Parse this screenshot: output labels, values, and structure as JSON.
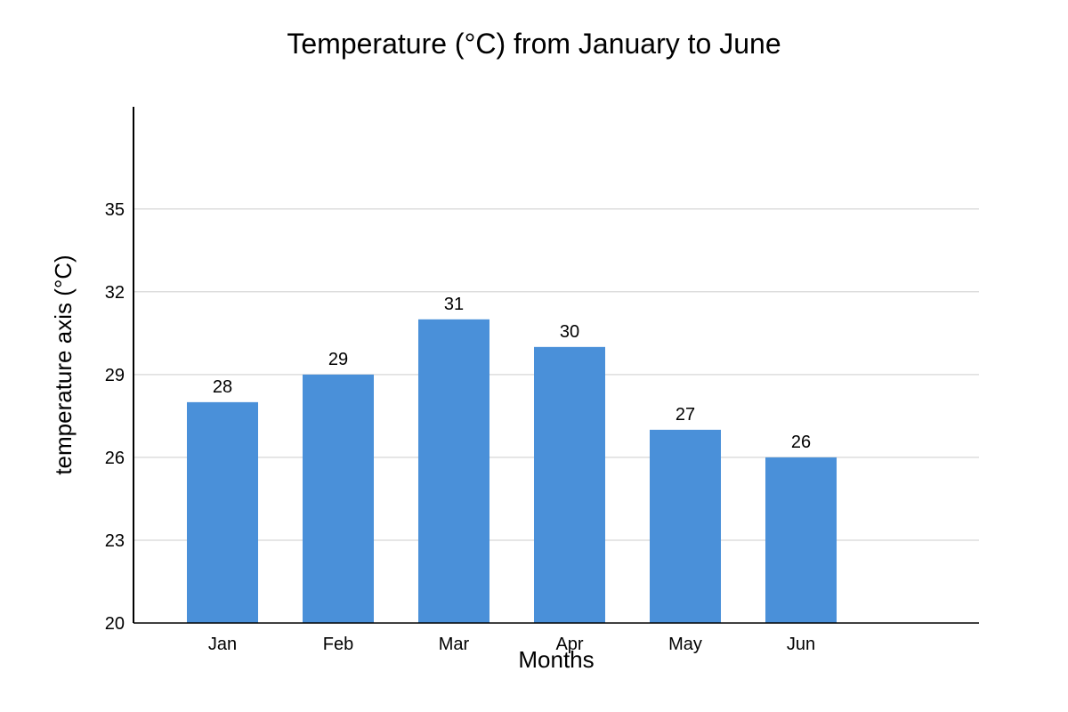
{
  "chart_data": {
    "type": "bar",
    "title": "Temperature (°C) from January to June",
    "xlabel": "Months",
    "ylabel": "temperature axis (°C)",
    "categories": [
      "Jan",
      "Feb",
      "Mar",
      "Apr",
      "May",
      "Jun"
    ],
    "values": [
      28,
      29,
      31,
      30,
      27,
      26
    ],
    "value_labels": [
      "28",
      "29",
      "31",
      "30",
      "27",
      "26"
    ],
    "yticks": [
      20,
      23,
      26,
      29,
      32,
      35
    ],
    "ytick_labels": [
      "20",
      "23",
      "26",
      "29",
      "32",
      "35"
    ],
    "ylim": [
      20,
      38.7
    ],
    "grid": true,
    "legend": "none",
    "colors": {
      "bar": "#4a90d9",
      "grid": "#dddddd",
      "axis": "#000000"
    }
  }
}
